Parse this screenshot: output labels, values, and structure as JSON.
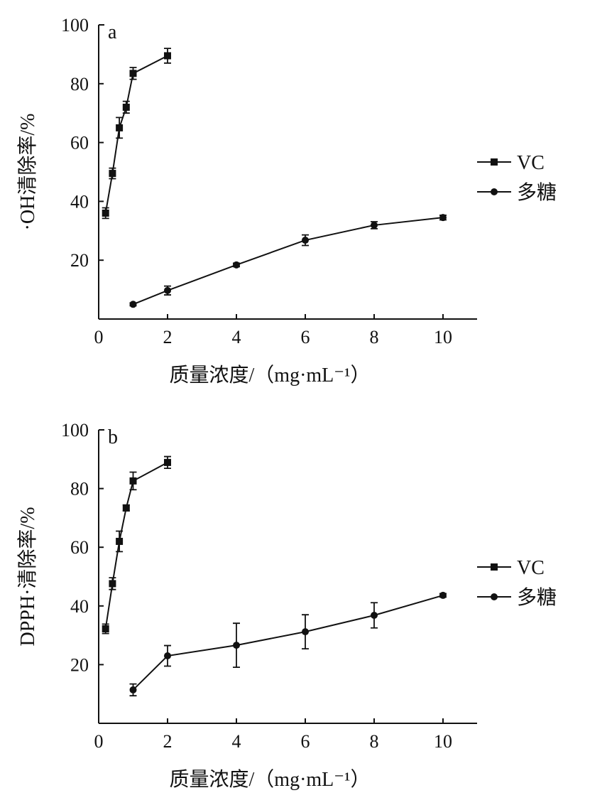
{
  "chart_data": [
    {
      "type": "line",
      "panel_label": "a",
      "ylabel": "·OH清除率/%",
      "xlabel": "质量浓度/（mg·mL⁻¹）",
      "xlim": [
        0,
        11
      ],
      "ylim": [
        0,
        100
      ],
      "xticks": [
        "0",
        "2",
        "4",
        "6",
        "8",
        "10"
      ],
      "yticks": [
        "20",
        "40",
        "60",
        "80",
        "100"
      ],
      "legend_position": "right",
      "series": [
        {
          "name": "VC",
          "marker": "square",
          "x": [
            0.2,
            0.4,
            0.6,
            0.8,
            1,
            2
          ],
          "y": [
            36,
            49.5,
            65,
            72,
            83.5,
            89.5
          ],
          "err": [
            1.8,
            1.8,
            3.5,
            2,
            2,
            2.5
          ]
        },
        {
          "name": "多糖",
          "marker": "circle",
          "x": [
            1,
            2,
            4,
            6,
            8,
            10
          ],
          "y": [
            5,
            9.7,
            18.4,
            26.8,
            31.9,
            34.5
          ],
          "err": [
            0.5,
            1.5,
            0.6,
            1.8,
            1.2,
            0.8
          ]
        }
      ]
    },
    {
      "type": "line",
      "panel_label": "b",
      "ylabel": "DPPH·清除率/%",
      "xlabel": "质量浓度/（mg·mL⁻¹）",
      "xlim": [
        0,
        11
      ],
      "ylim": [
        0,
        100
      ],
      "xticks": [
        "0",
        "2",
        "4",
        "6",
        "8",
        "10"
      ],
      "yticks": [
        "20",
        "40",
        "60",
        "80",
        "100"
      ],
      "legend_position": "right",
      "series": [
        {
          "name": "VC",
          "marker": "square",
          "x": [
            0.2,
            0.4,
            0.6,
            0.8,
            1,
            2
          ],
          "y": [
            32.2,
            47.6,
            62,
            73.4,
            82.6,
            88.9
          ],
          "err": [
            1.6,
            2,
            3.5,
            1,
            3,
            2
          ]
        },
        {
          "name": "多糖",
          "marker": "circle",
          "x": [
            1,
            2,
            4,
            6,
            8,
            10
          ],
          "y": [
            11.4,
            23,
            26.6,
            31.2,
            36.8,
            43.6
          ],
          "err": [
            2,
            3.5,
            7.5,
            5.8,
            4.3,
            0.6
          ]
        }
      ]
    }
  ]
}
